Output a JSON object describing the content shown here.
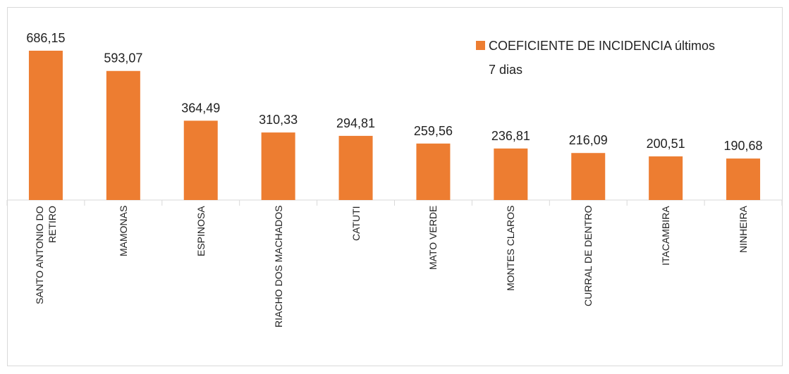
{
  "chart_data": {
    "type": "bar",
    "categories": [
      "SANTO ANTONIO DO RETIRO",
      "MAMONAS",
      "ESPINOSA",
      "RIACHO DOS MACHADOS",
      "CATUTI",
      "MATO VERDE",
      "MONTES CLAROS",
      "CURRAL DE DENTRO",
      "ITACAMBIRA",
      "NINHEIRA"
    ],
    "series": [
      {
        "name": "COEFICIENTE DE INCIDENCIA últimos 7 dias",
        "color": "#ed7d31",
        "values": [
          686.15,
          593.07,
          364.49,
          310.33,
          294.81,
          259.56,
          236.81,
          216.09,
          200.51,
          190.68
        ],
        "value_labels": [
          "686,15",
          "593,07",
          "364,49",
          "310,33",
          "294,81",
          "259,56",
          "236,81",
          "216,09",
          "200,51",
          "190,68"
        ]
      }
    ],
    "legend": "top-right"
  }
}
